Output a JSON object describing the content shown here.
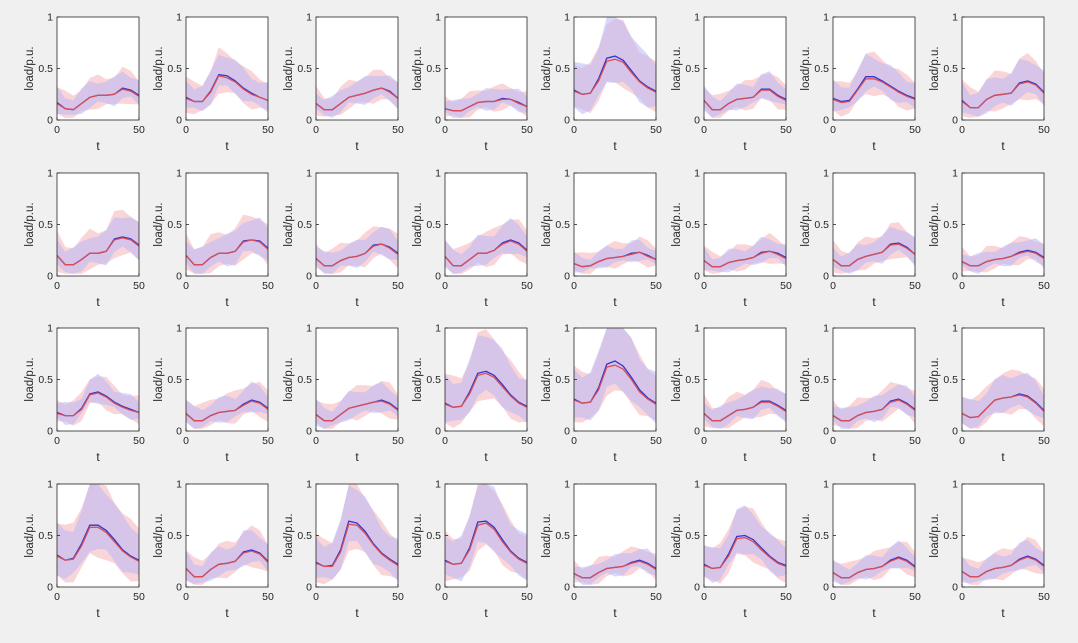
{
  "figure": {
    "background": "#f0f0f0",
    "mean_color_a": "#3333cc",
    "mean_color_b": "#d94f55",
    "band_color_a": "#b8b8f5",
    "band_color_b": "#f5b3b8"
  },
  "chart_data": {
    "type": "line",
    "grid": {
      "rows": 4,
      "cols": 8
    },
    "xlabel": "t",
    "ylabel": "load/p.u.",
    "xlim": [
      0,
      50
    ],
    "ylim": [
      0,
      1
    ],
    "xticks": [
      "0",
      "50"
    ],
    "yticks": [
      "0",
      "0.5",
      "1"
    ],
    "x": [
      0,
      5,
      10,
      15,
      20,
      25,
      30,
      35,
      40,
      45,
      50
    ],
    "panels": [
      {
        "a": [
          0.17,
          0.11,
          0.1,
          0.16,
          0.22,
          0.24,
          0.24,
          0.25,
          0.31,
          0.29,
          0.24
        ],
        "b": [
          0.16,
          0.11,
          0.1,
          0.16,
          0.22,
          0.24,
          0.24,
          0.25,
          0.3,
          0.28,
          0.23
        ],
        "ha": 0.16,
        "hb": 0.2
      },
      {
        "a": [
          0.22,
          0.18,
          0.18,
          0.28,
          0.44,
          0.43,
          0.38,
          0.31,
          0.26,
          0.22,
          0.19
        ],
        "b": [
          0.21,
          0.18,
          0.18,
          0.27,
          0.43,
          0.41,
          0.37,
          0.3,
          0.25,
          0.22,
          0.19
        ],
        "ha": 0.18,
        "hb": 0.22
      },
      {
        "a": [
          0.16,
          0.1,
          0.1,
          0.16,
          0.22,
          0.24,
          0.26,
          0.29,
          0.31,
          0.28,
          0.21
        ],
        "b": [
          0.16,
          0.1,
          0.1,
          0.16,
          0.22,
          0.24,
          0.26,
          0.29,
          0.31,
          0.27,
          0.21
        ],
        "ha": 0.15,
        "hb": 0.18
      },
      {
        "a": [
          0.11,
          0.09,
          0.09,
          0.13,
          0.17,
          0.18,
          0.18,
          0.21,
          0.2,
          0.17,
          0.13
        ],
        "b": [
          0.11,
          0.09,
          0.09,
          0.13,
          0.17,
          0.18,
          0.18,
          0.2,
          0.2,
          0.16,
          0.13
        ],
        "ha": 0.13,
        "hb": 0.16
      },
      {
        "a": [
          0.29,
          0.25,
          0.26,
          0.4,
          0.6,
          0.62,
          0.58,
          0.48,
          0.38,
          0.32,
          0.28
        ],
        "b": [
          0.28,
          0.25,
          0.26,
          0.38,
          0.57,
          0.59,
          0.56,
          0.46,
          0.37,
          0.31,
          0.27
        ],
        "ha": 0.3,
        "hb": 0.3
      },
      {
        "a": [
          0.19,
          0.1,
          0.1,
          0.16,
          0.2,
          0.21,
          0.22,
          0.3,
          0.3,
          0.24,
          0.2
        ],
        "b": [
          0.19,
          0.1,
          0.1,
          0.16,
          0.2,
          0.21,
          0.22,
          0.29,
          0.29,
          0.23,
          0.19
        ],
        "ha": 0.15,
        "hb": 0.18
      },
      {
        "a": [
          0.21,
          0.18,
          0.19,
          0.3,
          0.42,
          0.42,
          0.38,
          0.33,
          0.28,
          0.24,
          0.21
        ],
        "b": [
          0.2,
          0.17,
          0.18,
          0.29,
          0.4,
          0.4,
          0.37,
          0.32,
          0.27,
          0.23,
          0.2
        ],
        "ha": 0.18,
        "hb": 0.22
      },
      {
        "a": [
          0.19,
          0.12,
          0.12,
          0.2,
          0.24,
          0.25,
          0.26,
          0.36,
          0.38,
          0.35,
          0.27
        ],
        "b": [
          0.18,
          0.12,
          0.12,
          0.2,
          0.24,
          0.25,
          0.26,
          0.35,
          0.37,
          0.34,
          0.26
        ],
        "ha": 0.2,
        "hb": 0.24
      },
      {
        "a": [
          0.2,
          0.11,
          0.11,
          0.16,
          0.22,
          0.22,
          0.24,
          0.36,
          0.38,
          0.36,
          0.3
        ],
        "b": [
          0.2,
          0.11,
          0.11,
          0.16,
          0.22,
          0.22,
          0.24,
          0.35,
          0.37,
          0.35,
          0.29
        ],
        "ha": 0.2,
        "hb": 0.25
      },
      {
        "a": [
          0.2,
          0.11,
          0.11,
          0.18,
          0.22,
          0.22,
          0.24,
          0.34,
          0.35,
          0.34,
          0.27
        ],
        "b": [
          0.2,
          0.11,
          0.11,
          0.18,
          0.22,
          0.22,
          0.24,
          0.33,
          0.35,
          0.33,
          0.26
        ],
        "ha": 0.2,
        "hb": 0.24
      },
      {
        "a": [
          0.17,
          0.1,
          0.1,
          0.15,
          0.18,
          0.19,
          0.22,
          0.3,
          0.31,
          0.28,
          0.22
        ],
        "b": [
          0.17,
          0.1,
          0.1,
          0.15,
          0.18,
          0.19,
          0.22,
          0.29,
          0.31,
          0.27,
          0.21
        ],
        "ha": 0.16,
        "hb": 0.2
      },
      {
        "a": [
          0.19,
          0.1,
          0.1,
          0.16,
          0.22,
          0.22,
          0.25,
          0.32,
          0.35,
          0.32,
          0.25
        ],
        "b": [
          0.19,
          0.1,
          0.1,
          0.16,
          0.22,
          0.22,
          0.25,
          0.31,
          0.34,
          0.31,
          0.24
        ],
        "ha": 0.18,
        "hb": 0.22
      },
      {
        "a": [
          0.12,
          0.09,
          0.1,
          0.14,
          0.17,
          0.18,
          0.19,
          0.22,
          0.23,
          0.2,
          0.16
        ],
        "b": [
          0.12,
          0.09,
          0.1,
          0.14,
          0.17,
          0.18,
          0.19,
          0.21,
          0.23,
          0.19,
          0.16
        ],
        "ha": 0.12,
        "hb": 0.16
      },
      {
        "a": [
          0.15,
          0.09,
          0.09,
          0.13,
          0.15,
          0.16,
          0.18,
          0.23,
          0.24,
          0.22,
          0.18
        ],
        "b": [
          0.15,
          0.09,
          0.09,
          0.13,
          0.15,
          0.16,
          0.18,
          0.22,
          0.24,
          0.21,
          0.17
        ],
        "ha": 0.14,
        "hb": 0.17
      },
      {
        "a": [
          0.16,
          0.1,
          0.1,
          0.16,
          0.19,
          0.21,
          0.23,
          0.31,
          0.32,
          0.28,
          0.21
        ],
        "b": [
          0.16,
          0.1,
          0.1,
          0.16,
          0.19,
          0.21,
          0.23,
          0.3,
          0.31,
          0.27,
          0.21
        ],
        "ha": 0.16,
        "hb": 0.2
      },
      {
        "a": [
          0.14,
          0.1,
          0.1,
          0.14,
          0.16,
          0.17,
          0.19,
          0.23,
          0.25,
          0.23,
          0.18
        ],
        "b": [
          0.14,
          0.1,
          0.1,
          0.14,
          0.16,
          0.17,
          0.19,
          0.22,
          0.24,
          0.22,
          0.17
        ],
        "ha": 0.13,
        "hb": 0.16
      },
      {
        "a": [
          0.18,
          0.15,
          0.15,
          0.22,
          0.36,
          0.38,
          0.34,
          0.28,
          0.24,
          0.21,
          0.18
        ],
        "b": [
          0.17,
          0.15,
          0.15,
          0.21,
          0.35,
          0.37,
          0.33,
          0.27,
          0.23,
          0.2,
          0.18
        ],
        "ha": 0.14,
        "hb": 0.17
      },
      {
        "a": [
          0.17,
          0.1,
          0.1,
          0.15,
          0.18,
          0.19,
          0.2,
          0.26,
          0.3,
          0.28,
          0.22
        ],
        "b": [
          0.17,
          0.1,
          0.1,
          0.15,
          0.18,
          0.19,
          0.2,
          0.25,
          0.29,
          0.27,
          0.21
        ],
        "ha": 0.16,
        "hb": 0.2
      },
      {
        "a": [
          0.16,
          0.1,
          0.1,
          0.16,
          0.22,
          0.24,
          0.26,
          0.28,
          0.3,
          0.27,
          0.21
        ],
        "b": [
          0.16,
          0.1,
          0.1,
          0.16,
          0.22,
          0.24,
          0.26,
          0.28,
          0.29,
          0.26,
          0.2
        ],
        "ha": 0.16,
        "hb": 0.2
      },
      {
        "a": [
          0.27,
          0.23,
          0.24,
          0.38,
          0.56,
          0.58,
          0.54,
          0.45,
          0.35,
          0.28,
          0.24
        ],
        "b": [
          0.26,
          0.23,
          0.24,
          0.36,
          0.54,
          0.56,
          0.52,
          0.43,
          0.34,
          0.27,
          0.23
        ],
        "ha": 0.28,
        "hb": 0.32
      },
      {
        "a": [
          0.31,
          0.27,
          0.28,
          0.42,
          0.65,
          0.68,
          0.63,
          0.52,
          0.4,
          0.32,
          0.27
        ],
        "b": [
          0.3,
          0.27,
          0.28,
          0.4,
          0.62,
          0.64,
          0.6,
          0.5,
          0.38,
          0.31,
          0.26
        ],
        "ha": 0.3,
        "hb": 0.32
      },
      {
        "a": [
          0.17,
          0.1,
          0.1,
          0.15,
          0.2,
          0.21,
          0.23,
          0.29,
          0.29,
          0.25,
          0.2
        ],
        "b": [
          0.17,
          0.1,
          0.1,
          0.15,
          0.2,
          0.21,
          0.23,
          0.28,
          0.28,
          0.24,
          0.19
        ],
        "ha": 0.16,
        "hb": 0.2
      },
      {
        "a": [
          0.15,
          0.1,
          0.1,
          0.15,
          0.18,
          0.19,
          0.21,
          0.29,
          0.31,
          0.27,
          0.21
        ],
        "b": [
          0.15,
          0.1,
          0.1,
          0.15,
          0.18,
          0.19,
          0.21,
          0.28,
          0.3,
          0.26,
          0.2
        ],
        "ha": 0.15,
        "hb": 0.19
      },
      {
        "a": [
          0.17,
          0.13,
          0.14,
          0.22,
          0.3,
          0.32,
          0.33,
          0.36,
          0.34,
          0.28,
          0.2
        ],
        "b": [
          0.17,
          0.13,
          0.14,
          0.22,
          0.3,
          0.32,
          0.33,
          0.35,
          0.33,
          0.27,
          0.19
        ],
        "ha": 0.2,
        "hb": 0.24
      },
      {
        "a": [
          0.31,
          0.26,
          0.28,
          0.42,
          0.6,
          0.6,
          0.55,
          0.46,
          0.36,
          0.3,
          0.26
        ],
        "b": [
          0.3,
          0.26,
          0.27,
          0.4,
          0.58,
          0.58,
          0.53,
          0.44,
          0.35,
          0.29,
          0.25
        ],
        "ha": 0.3,
        "hb": 0.36
      },
      {
        "a": [
          0.18,
          0.1,
          0.1,
          0.17,
          0.22,
          0.23,
          0.25,
          0.34,
          0.36,
          0.33,
          0.25
        ],
        "b": [
          0.18,
          0.1,
          0.1,
          0.17,
          0.22,
          0.23,
          0.25,
          0.33,
          0.35,
          0.32,
          0.24
        ],
        "ha": 0.18,
        "hb": 0.22
      },
      {
        "a": [
          0.24,
          0.2,
          0.21,
          0.36,
          0.64,
          0.62,
          0.54,
          0.42,
          0.33,
          0.27,
          0.22
        ],
        "b": [
          0.23,
          0.2,
          0.2,
          0.34,
          0.61,
          0.6,
          0.52,
          0.41,
          0.32,
          0.26,
          0.21
        ],
        "ha": 0.26,
        "hb": 0.3
      },
      {
        "a": [
          0.26,
          0.22,
          0.23,
          0.38,
          0.63,
          0.64,
          0.58,
          0.46,
          0.35,
          0.28,
          0.24
        ],
        "b": [
          0.25,
          0.22,
          0.23,
          0.36,
          0.6,
          0.62,
          0.56,
          0.44,
          0.34,
          0.27,
          0.23
        ],
        "ha": 0.28,
        "hb": 0.3
      },
      {
        "a": [
          0.13,
          0.09,
          0.09,
          0.14,
          0.18,
          0.19,
          0.2,
          0.24,
          0.26,
          0.23,
          0.18
        ],
        "b": [
          0.13,
          0.09,
          0.09,
          0.14,
          0.18,
          0.19,
          0.2,
          0.23,
          0.25,
          0.22,
          0.17
        ],
        "ha": 0.13,
        "hb": 0.16
      },
      {
        "a": [
          0.22,
          0.18,
          0.19,
          0.32,
          0.49,
          0.5,
          0.46,
          0.38,
          0.3,
          0.24,
          0.21
        ],
        "b": [
          0.21,
          0.18,
          0.19,
          0.3,
          0.47,
          0.48,
          0.44,
          0.36,
          0.29,
          0.23,
          0.2
        ],
        "ha": 0.22,
        "hb": 0.26
      },
      {
        "a": [
          0.14,
          0.09,
          0.09,
          0.14,
          0.17,
          0.18,
          0.2,
          0.26,
          0.29,
          0.26,
          0.2
        ],
        "b": [
          0.14,
          0.09,
          0.09,
          0.14,
          0.17,
          0.18,
          0.2,
          0.25,
          0.28,
          0.25,
          0.19
        ],
        "ha": 0.14,
        "hb": 0.18
      },
      {
        "a": [
          0.15,
          0.1,
          0.1,
          0.15,
          0.18,
          0.19,
          0.21,
          0.27,
          0.3,
          0.27,
          0.21
        ],
        "b": [
          0.15,
          0.1,
          0.1,
          0.15,
          0.18,
          0.19,
          0.21,
          0.26,
          0.29,
          0.26,
          0.2
        ],
        "ha": 0.15,
        "hb": 0.19
      }
    ]
  }
}
